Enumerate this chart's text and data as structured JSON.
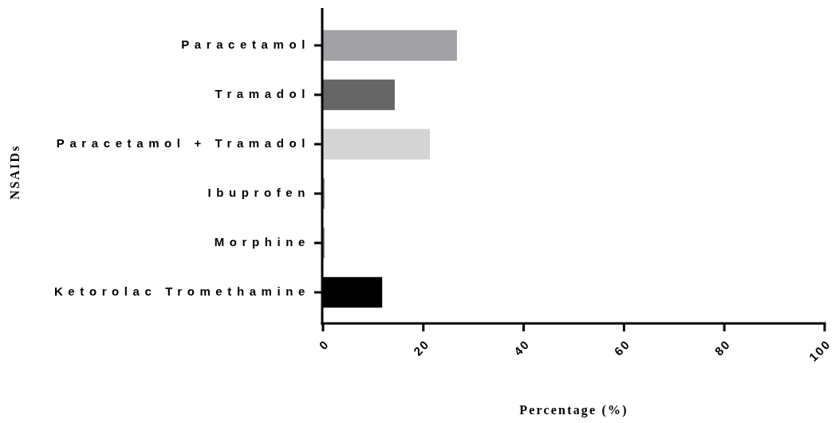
{
  "chart_data": {
    "type": "bar",
    "orientation": "horizontal",
    "xlabel": "Percentage (%)",
    "ylabel": "NSAIDs",
    "categories": [
      "Paracetamol",
      "Tramadol",
      "Paracetamol + Tramadol",
      "Ibuprofen",
      "Morphine",
      "Ketorolac Tromethamine"
    ],
    "values": [
      26.7,
      14.3,
      21.3,
      0.3,
      0.3,
      11.8
    ],
    "colors": [
      "#a2a1a6",
      "#666666",
      "#d4d4d4",
      "#888888",
      "#888888",
      "#000000"
    ],
    "xlim": [
      0,
      100
    ],
    "xticks": [
      0,
      20,
      40,
      60,
      80,
      100
    ],
    "grid": false
  }
}
